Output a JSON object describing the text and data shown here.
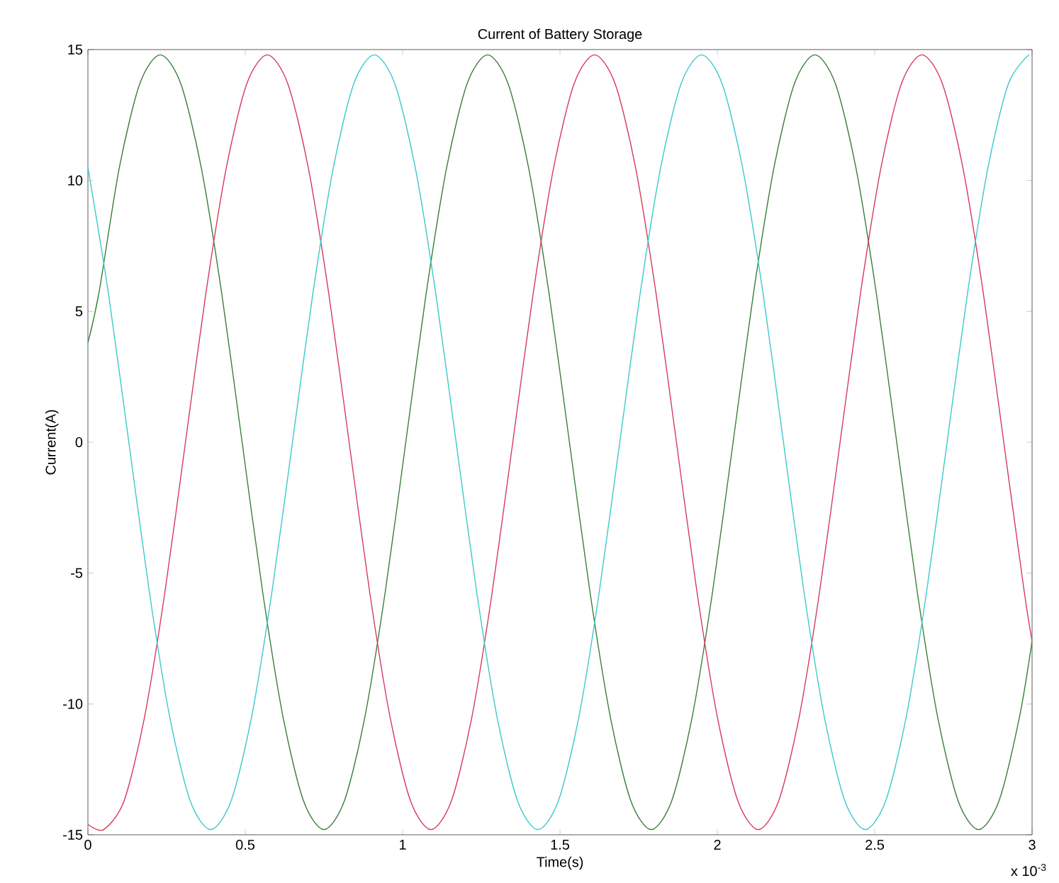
{
  "chart_data": {
    "type": "line",
    "title": "Current of Battery Storage",
    "xlabel": "Time(s)",
    "ylabel": "Current(A)",
    "annotations": [
      "x 10$^{-3}$"
    ],
    "xlim": [
      0,
      3
    ],
    "xticks": [
      0,
      0.5,
      1,
      1.5,
      2,
      2.5,
      3
    ],
    "ylim": [
      -15,
      15
    ],
    "yticks": [
      -15,
      -10,
      -5,
      0,
      5,
      10,
      15
    ],
    "marker": "none",
    "line_style": "solid",
    "series": [
      {
        "color": "#3b7d3b",
        "x": [
          0,
          0.035,
          0.1,
          0.165,
          0.23,
          0.295,
          0.36,
          0.425,
          0.49,
          0.555,
          0.62,
          0.685,
          0.75,
          0.815,
          0.88,
          0.945,
          1.01,
          1.075,
          1.14,
          1.205,
          1.27,
          1.335,
          1.4,
          1.465,
          1.53,
          1.595,
          1.66,
          1.725,
          1.79,
          1.855,
          1.92,
          1.985,
          2.05,
          2.115,
          2.18,
          2.245,
          2.31,
          2.375,
          2.44,
          2.505,
          2.57,
          2.635,
          2.7,
          2.765,
          2.83,
          2.895,
          2.96,
          3
        ],
        "values": [
          3.8,
          5.7,
          10.5,
          13.7,
          14.8,
          13.7,
          10.5,
          5.7,
          0,
          -5.7,
          -10.5,
          -13.7,
          -14.8,
          -13.7,
          -10.5,
          -5.7,
          0,
          5.7,
          10.5,
          13.7,
          14.8,
          13.7,
          10.5,
          5.7,
          0,
          -5.7,
          -10.5,
          -13.7,
          -14.8,
          -13.7,
          -10.5,
          -5.7,
          0,
          5.7,
          10.5,
          13.7,
          14.8,
          13.7,
          10.5,
          5.7,
          0,
          -5.7,
          -10.5,
          -13.7,
          -14.8,
          -13.7,
          -10.5,
          -7.6
        ]
      },
      {
        "color": "#d63a5a",
        "x": [
          0,
          0.05,
          0.115,
          0.18,
          0.245,
          0.31,
          0.375,
          0.44,
          0.505,
          0.57,
          0.635,
          0.7,
          0.765,
          0.83,
          0.895,
          0.96,
          1.025,
          1.09,
          1.155,
          1.22,
          1.285,
          1.35,
          1.415,
          1.48,
          1.545,
          1.61,
          1.675,
          1.74,
          1.805,
          1.87,
          1.935,
          2.0,
          2.065,
          2.13,
          2.195,
          2.26,
          2.325,
          2.39,
          2.455,
          2.52,
          2.585,
          2.65,
          2.715,
          2.78,
          2.845,
          2.91,
          2.975,
          3
        ],
        "values": [
          -14.6,
          -14.8,
          -13.7,
          -10.5,
          -5.7,
          0,
          5.7,
          10.5,
          13.7,
          14.8,
          13.7,
          10.5,
          5.7,
          0,
          -5.7,
          -10.5,
          -13.7,
          -14.8,
          -13.7,
          -10.5,
          -5.7,
          0,
          5.7,
          10.5,
          13.7,
          14.8,
          13.7,
          10.5,
          5.7,
          0,
          -5.7,
          -10.5,
          -13.7,
          -14.8,
          -13.7,
          -10.5,
          -5.7,
          0,
          5.7,
          10.5,
          13.7,
          14.8,
          13.7,
          10.5,
          5.7,
          0,
          -5.7,
          -7.6
        ]
      },
      {
        "color": "#3cc8cc",
        "x": [
          0,
          0.065,
          0.13,
          0.195,
          0.26,
          0.325,
          0.39,
          0.455,
          0.52,
          0.585,
          0.65,
          0.715,
          0.78,
          0.845,
          0.91,
          0.975,
          1.04,
          1.105,
          1.17,
          1.235,
          1.3,
          1.365,
          1.43,
          1.495,
          1.56,
          1.625,
          1.69,
          1.755,
          1.82,
          1.885,
          1.95,
          2.015,
          2.08,
          2.145,
          2.21,
          2.275,
          2.34,
          2.405,
          2.47,
          2.535,
          2.6,
          2.665,
          2.73,
          2.795,
          2.86,
          2.925,
          2.99
        ],
        "values": [
          10.5,
          5.7,
          0,
          -5.7,
          -10.5,
          -13.7,
          -14.8,
          -13.7,
          -10.5,
          -5.7,
          0,
          5.7,
          10.5,
          13.7,
          14.8,
          13.7,
          10.5,
          5.7,
          0,
          -5.7,
          -10.5,
          -13.7,
          -14.8,
          -13.7,
          -10.5,
          -5.7,
          0,
          5.7,
          10.5,
          13.7,
          14.8,
          13.7,
          10.5,
          5.7,
          0,
          -5.7,
          -10.5,
          -13.7,
          -14.8,
          -13.7,
          -10.5,
          -5.7,
          0,
          5.7,
          10.5,
          13.7,
          14.8
        ]
      }
    ]
  }
}
